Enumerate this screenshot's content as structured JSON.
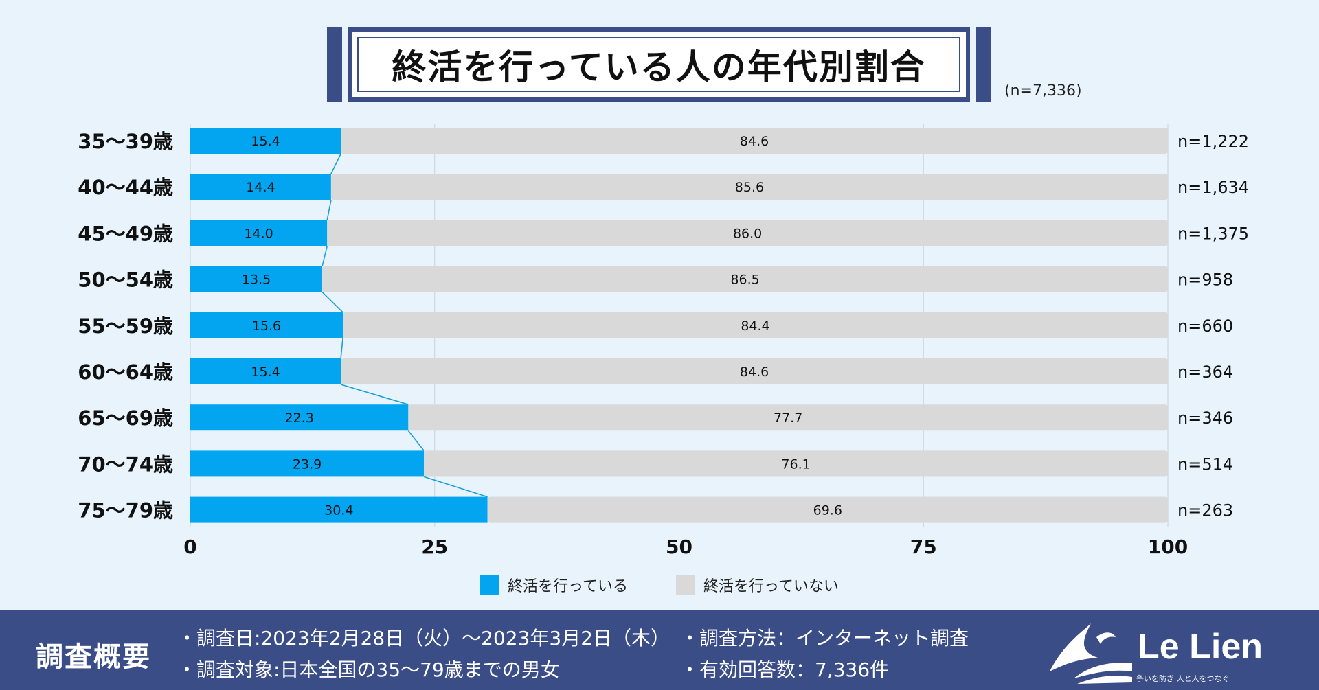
{
  "title": "終活を行っている人の年代別割合",
  "total_n": "(n=7,336)",
  "chart_data": {
    "type": "bar",
    "stacked": true,
    "orientation": "horizontal",
    "title": "終活を行っている人の年代別割合",
    "categories": [
      "35〜39歳",
      "40〜44歳",
      "45〜49歳",
      "50〜54歳",
      "55〜59歳",
      "60〜64歳",
      "65〜69歳",
      "70〜74歳",
      "75〜79歳"
    ],
    "series": [
      {
        "name": "終活を行っている",
        "color": "#03a4f0",
        "values": [
          15.4,
          14.4,
          14.0,
          13.5,
          15.6,
          15.4,
          22.3,
          23.9,
          30.4
        ]
      },
      {
        "name": "終活を行っていない",
        "color": "#d9d9d9",
        "values": [
          84.6,
          85.6,
          86.0,
          86.5,
          84.4,
          84.6,
          77.7,
          76.1,
          69.6
        ]
      }
    ],
    "n_labels": [
      "n=1,222",
      "n=1,634",
      "n=1,375",
      "n=958",
      "n=660",
      "n=364",
      "n=346",
      "n=514",
      "n=263"
    ],
    "xlim": [
      0,
      100
    ],
    "x_ticks": [
      0,
      25,
      50,
      75,
      100
    ],
    "grid": true,
    "connector_color": "#1a9fd8"
  },
  "footer": {
    "title": "調査概要",
    "items": [
      "・調査日:2023年2月28日（火）〜2023年3月2日（木）",
      "・調査方法：インターネット調査",
      "・調査対象:日本全国の35〜79歳までの男女",
      "・有効回答数：7,336件"
    ],
    "logo_text": "Le Lien",
    "logo_tagline": "争いを防ぎ 人と人をつなぐ"
  }
}
